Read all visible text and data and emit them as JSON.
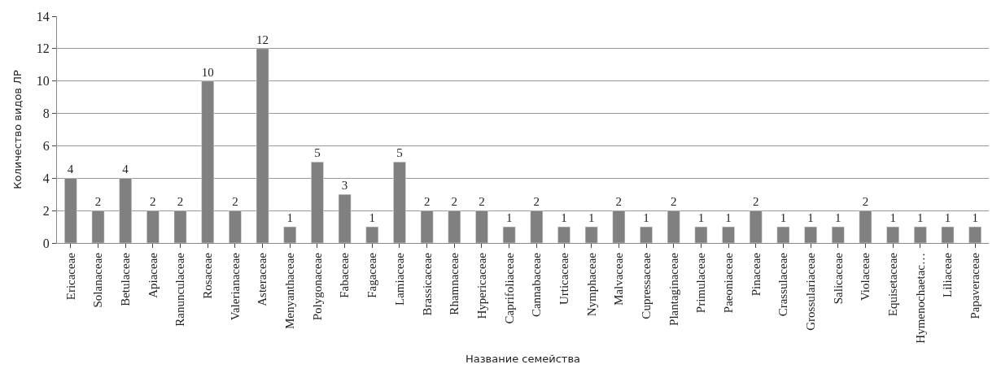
{
  "chart_data": {
    "type": "bar",
    "xlabel": "Название семейства",
    "ylabel": "Количество видов ЛР",
    "categories": [
      "Ericaceae",
      "Solanaceae",
      "Betulaceae",
      "Apiaceae",
      "Ranunculaceae",
      "Rosaceae",
      "Valerianaceae",
      "Asteraceae",
      "Menyanthaceae",
      "Polygonaceae",
      "Fabaceae",
      "Fagaceae",
      "Lamiaceae",
      "Brassicaceae",
      "Rhamnaceae",
      "Hypericaceae",
      "Caprifoliaceae",
      "Cannabaceae",
      "Urticaceae",
      "Nymphaceae",
      "Malvaceae",
      "Cupressaceae",
      "Plantaginaceae",
      "Primulaceae",
      "Paeoniaceae",
      "Pinaceae",
      "Crassulaceae",
      "Grossulariaceae",
      "Salicaceae",
      "Violaceae",
      "Equisetaceae",
      "Hymenochaetac…",
      "Liliaceae",
      "Papaveraceae"
    ],
    "values": [
      4,
      2,
      4,
      2,
      2,
      10,
      2,
      12,
      1,
      5,
      3,
      1,
      5,
      2,
      2,
      2,
      1,
      2,
      1,
      1,
      2,
      1,
      2,
      1,
      1,
      2,
      1,
      1,
      1,
      2,
      1,
      1,
      1,
      1
    ],
    "color": "#808080",
    "ylim": [
      0,
      14
    ],
    "yticks": [
      0,
      2,
      4,
      6,
      8,
      10,
      12,
      14
    ],
    "grid": "y",
    "data_labels": true
  }
}
